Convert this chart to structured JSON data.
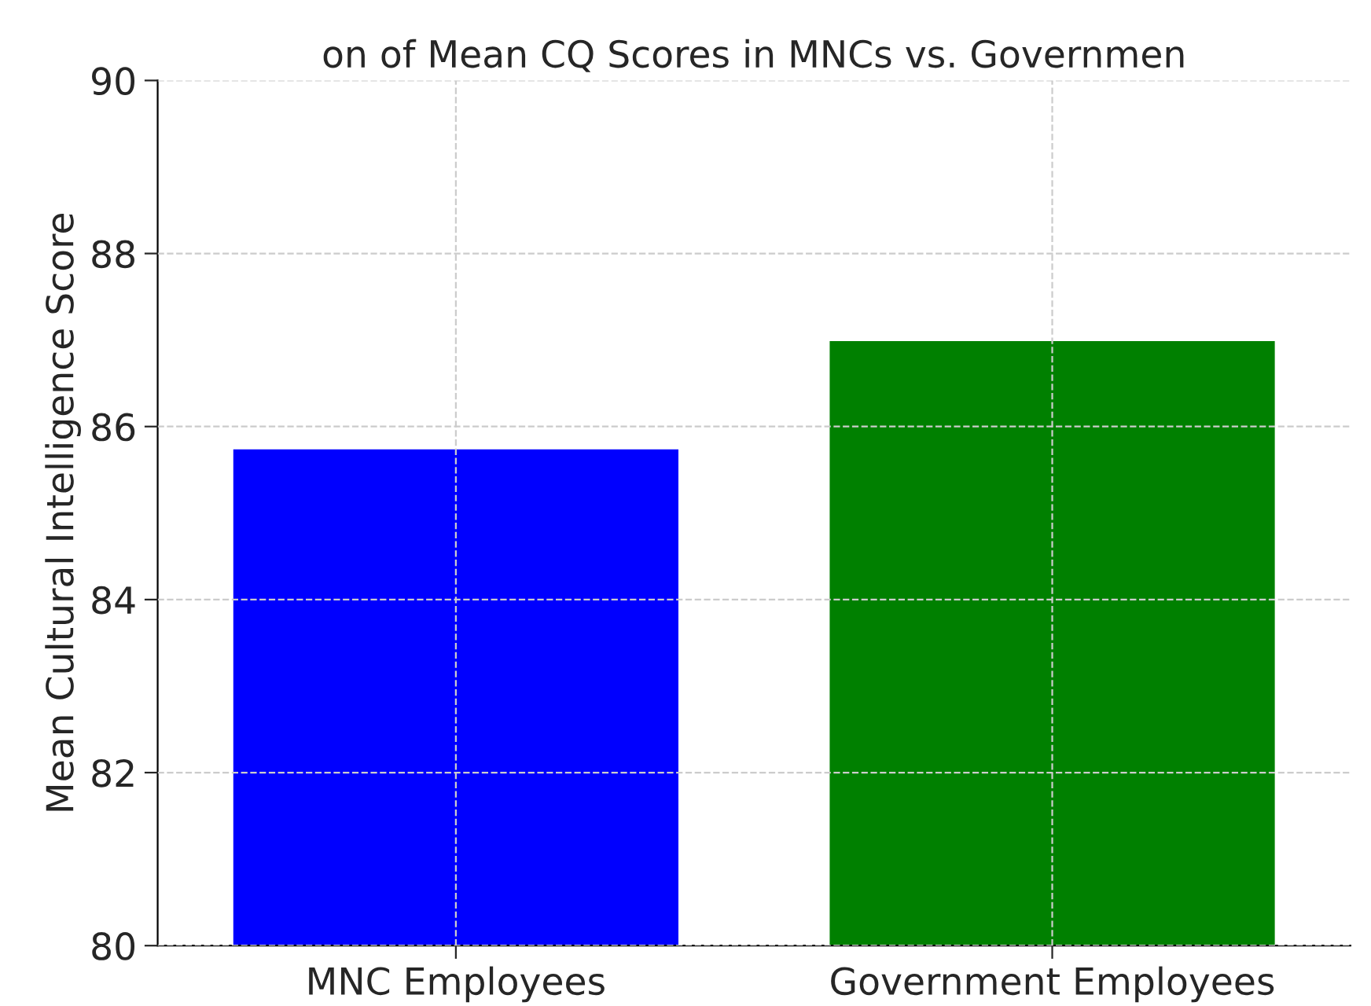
{
  "chart_data": {
    "type": "bar",
    "title": "on of Mean CQ Scores in MNCs vs. Governmen",
    "ylabel": "Mean Cultural Intelligence Score",
    "categories": [
      "MNC Employees",
      "Government Employees"
    ],
    "values": [
      85.75,
      87.0
    ],
    "colors": [
      "#0000ff",
      "#008000"
    ],
    "ylim": [
      80,
      90
    ],
    "yticks": [
      80,
      82,
      84,
      86,
      88,
      90
    ],
    "grid": true
  }
}
